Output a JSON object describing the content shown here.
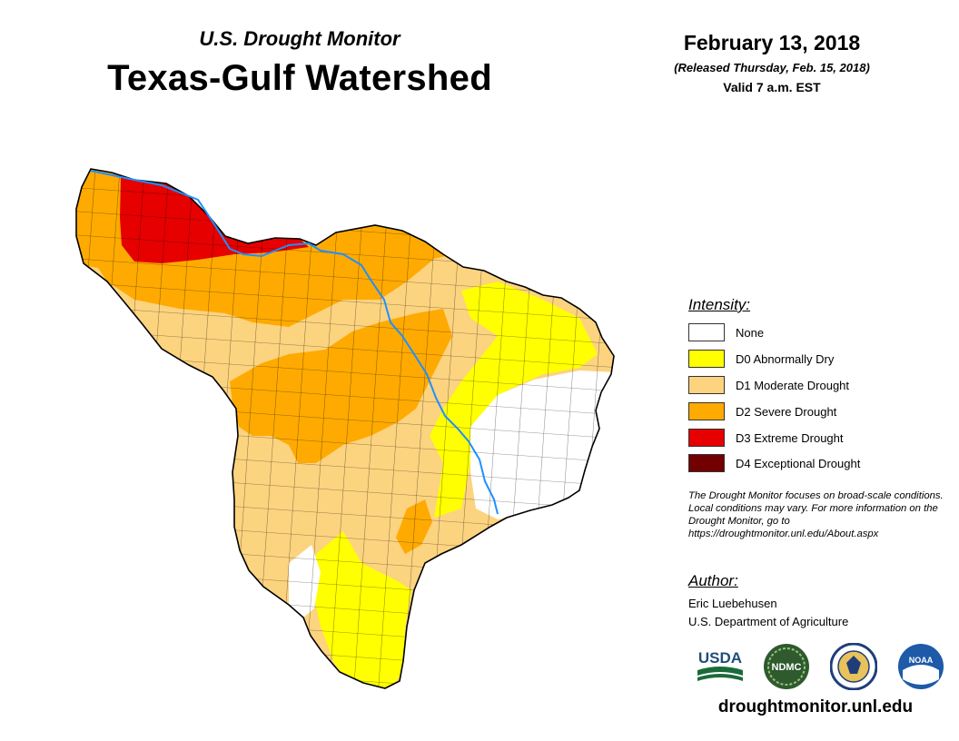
{
  "header": {
    "subtitle": "U.S. Drought Monitor",
    "title": "Texas-Gulf Watershed",
    "date": "February 13, 2018",
    "released": "(Released Thursday, Feb. 15, 2018)",
    "valid": "Valid 7 a.m. EST"
  },
  "legend": {
    "heading": "Intensity:",
    "items": [
      {
        "label": "None",
        "color": "#ffffff"
      },
      {
        "label": "D0 Abnormally Dry",
        "color": "#ffff00"
      },
      {
        "label": "D1 Moderate Drought",
        "color": "#fcd37f"
      },
      {
        "label": "D2 Severe Drought",
        "color": "#ffaa00"
      },
      {
        "label": "D3 Extreme Drought",
        "color": "#e60000"
      },
      {
        "label": "D4 Exceptional Drought",
        "color": "#730000"
      }
    ]
  },
  "note": "The Drought Monitor focuses on broad-scale conditions. Local conditions may vary. For more information on the Drought Monitor, go to https://droughtmonitor.unl.edu/About.aspx",
  "author": {
    "heading": "Author:",
    "name": "Eric Luebehusen",
    "org": "U.S. Department of Agriculture"
  },
  "logos": {
    "usda": "USDA",
    "ndmc": "NDMC",
    "noaa": "NOAA"
  },
  "website": "droughtmonitor.unl.edu",
  "colors": {
    "river": "#1e90ff",
    "county_line": "#000000"
  }
}
